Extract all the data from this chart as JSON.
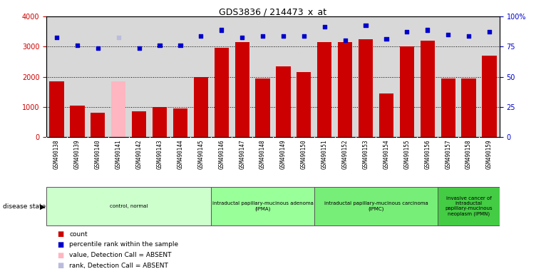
{
  "title": "GDS3836 / 214473_x_at",
  "samples": [
    "GSM490138",
    "GSM490139",
    "GSM490140",
    "GSM490141",
    "GSM490142",
    "GSM490143",
    "GSM490144",
    "GSM490145",
    "GSM490146",
    "GSM490147",
    "GSM490148",
    "GSM490149",
    "GSM490150",
    "GSM490151",
    "GSM490152",
    "GSM490153",
    "GSM490154",
    "GSM490155",
    "GSM490156",
    "GSM490157",
    "GSM490158",
    "GSM490159"
  ],
  "counts": [
    1850,
    1050,
    800,
    1850,
    850,
    1000,
    950,
    2000,
    2950,
    3150,
    1950,
    2350,
    2150,
    3150,
    3150,
    3250,
    1450,
    3000,
    3200,
    1950,
    1950,
    2700
  ],
  "absent_count_indices": [
    3
  ],
  "absent_rank_indices": [
    3
  ],
  "percentile_ranks_pct": [
    82.5,
    76.25,
    73.75,
    82.5,
    73.75,
    76.25,
    76.25,
    83.75,
    88.75,
    82.5,
    83.75,
    83.75,
    83.75,
    91.25,
    80.0,
    92.5,
    81.25,
    87.5,
    88.75,
    85.0,
    83.75,
    87.5
  ],
  "absent_pct_indices": [
    3
  ],
  "ylim_left": [
    0,
    4000
  ],
  "ylim_right": [
    0,
    100
  ],
  "yticks_left": [
    0,
    1000,
    2000,
    3000,
    4000
  ],
  "yticks_right": [
    0,
    25,
    50,
    75,
    100
  ],
  "bar_color": "#cc0000",
  "absent_bar_color": "#ffb6c1",
  "dot_color": "#0000cc",
  "absent_dot_color": "#bbbbdd",
  "grid_color": "#000000",
  "plot_bg_color": "#d8d8d8",
  "tick_label_bg": "#c8c8c8",
  "groups": [
    {
      "label": "control, normal",
      "start": 0,
      "end": 8,
      "color": "#ccffcc"
    },
    {
      "label": "intraductal papillary-mucinous adenoma\n(IPMA)",
      "start": 8,
      "end": 13,
      "color": "#99ff99"
    },
    {
      "label": "intraductal papillary-mucinous carcinoma\n(IPMC)",
      "start": 13,
      "end": 19,
      "color": "#77ee77"
    },
    {
      "label": "invasive cancer of\nintraductal\npapillary-mucinous\nneoplasm (IPMN)",
      "start": 19,
      "end": 22,
      "color": "#44cc44"
    }
  ],
  "legend_items": [
    {
      "label": "count",
      "color": "#cc0000"
    },
    {
      "label": "percentile rank within the sample",
      "color": "#0000cc"
    },
    {
      "label": "value, Detection Call = ABSENT",
      "color": "#ffb6c1"
    },
    {
      "label": "rank, Detection Call = ABSENT",
      "color": "#bbbbdd"
    }
  ],
  "disease_state_label": "disease state",
  "bg_color": "#ffffff"
}
